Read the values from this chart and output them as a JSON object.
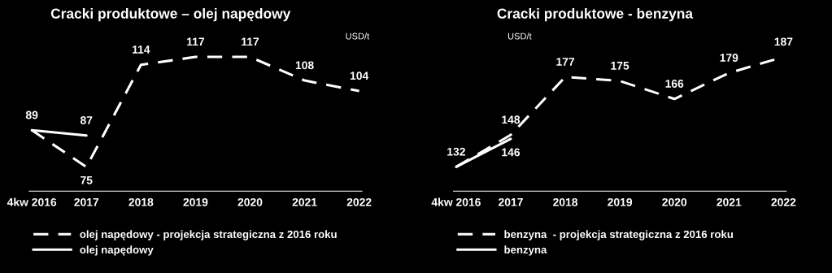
{
  "chart_data": [
    {
      "type": "line",
      "title": "Cracki produktowe – olej napędowy",
      "ylabel": "USD/t",
      "categories": [
        "4kw 2016",
        "2017",
        "2018",
        "2019",
        "2020",
        "2021",
        "2022"
      ],
      "series": [
        {
          "name": "olej napędowy - projekcja strategiczna z 2016 roku",
          "color": "#ffffff",
          "line_style": "dashed",
          "values": [
            89,
            75,
            114,
            117,
            117,
            108,
            104
          ],
          "value_labels": [
            "89",
            "75",
            "114",
            "117",
            "117",
            "108",
            "104"
          ]
        },
        {
          "name": "olej napędowy",
          "color": "#ffffff",
          "line_style": "solid",
          "values": [
            89,
            87,
            null,
            null,
            null,
            null,
            null
          ],
          "value_labels": [
            null,
            "87",
            null,
            null,
            null,
            null,
            null
          ]
        }
      ],
      "legend": "bottom left",
      "grid": false,
      "marker": "none"
    },
    {
      "type": "line",
      "title": "Cracki produktowe - benzyna",
      "ylabel": "USD/t",
      "categories": [
        "4kw 2016",
        "2017",
        "2018",
        "2019",
        "2020",
        "2021",
        "2022"
      ],
      "series": [
        {
          "name": "benzyna  - projekcja strategiczna z 2016 roku",
          "color": "#ffffff",
          "line_style": "dashed",
          "values": [
            132,
            148,
            177,
            175,
            166,
            179,
            187
          ],
          "value_labels": [
            "132",
            "148",
            "177",
            "175",
            "166",
            "179",
            "187"
          ]
        },
        {
          "name": "benzyna",
          "color": "#ffffff",
          "line_style": "solid",
          "values": [
            132,
            146,
            null,
            null,
            null,
            null,
            null
          ],
          "value_labels": [
            null,
            "146",
            null,
            null,
            null,
            null,
            null
          ]
        }
      ],
      "legend": "bottom left",
      "grid": false,
      "marker": "none"
    }
  ]
}
